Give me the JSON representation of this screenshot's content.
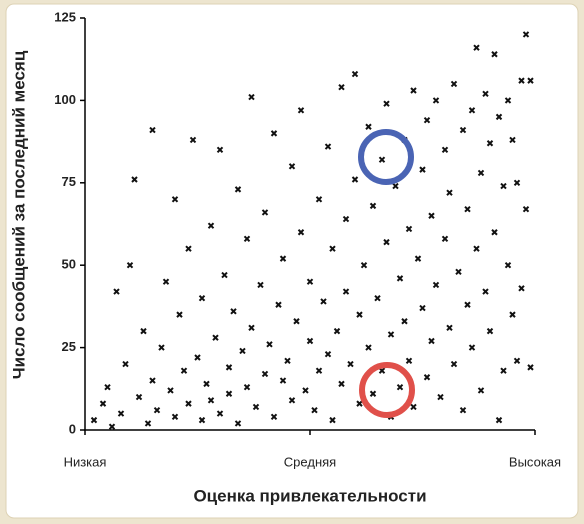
{
  "chart_data": {
    "type": "scatter",
    "xlabel": "Оценка привлекательности",
    "ylabel": "Число сообщений за последний месяц",
    "xlim": [
      0,
      1
    ],
    "ylim": [
      0,
      125
    ],
    "xticks": [
      {
        "value": 0,
        "label": "Низкая"
      },
      {
        "value": 0.5,
        "label": "Средняя"
      },
      {
        "value": 1,
        "label": "Высокая"
      }
    ],
    "yticks": [
      0,
      25,
      50,
      75,
      100,
      125
    ],
    "color": "#111111",
    "x": [
      0.02,
      0.04,
      0.05,
      0.06,
      0.07,
      0.08,
      0.09,
      0.1,
      0.11,
      0.12,
      0.13,
      0.14,
      0.15,
      0.15,
      0.16,
      0.17,
      0.18,
      0.19,
      0.2,
      0.2,
      0.21,
      0.22,
      0.23,
      0.23,
      0.24,
      0.25,
      0.26,
      0.26,
      0.27,
      0.28,
      0.28,
      0.29,
      0.3,
      0.3,
      0.31,
      0.32,
      0.32,
      0.33,
      0.34,
      0.34,
      0.35,
      0.36,
      0.36,
      0.37,
      0.37,
      0.38,
      0.39,
      0.4,
      0.4,
      0.41,
      0.42,
      0.42,
      0.43,
      0.44,
      0.44,
      0.45,
      0.46,
      0.46,
      0.47,
      0.48,
      0.48,
      0.49,
      0.5,
      0.5,
      0.51,
      0.52,
      0.52,
      0.53,
      0.54,
      0.54,
      0.55,
      0.55,
      0.56,
      0.57,
      0.57,
      0.58,
      0.58,
      0.59,
      0.6,
      0.6,
      0.61,
      0.61,
      0.62,
      0.63,
      0.63,
      0.64,
      0.64,
      0.65,
      0.66,
      0.66,
      0.67,
      0.67,
      0.68,
      0.68,
      0.69,
      0.7,
      0.7,
      0.71,
      0.71,
      0.72,
      0.72,
      0.73,
      0.73,
      0.74,
      0.75,
      0.75,
      0.76,
      0.76,
      0.77,
      0.77,
      0.78,
      0.78,
      0.79,
      0.8,
      0.8,
      0.81,
      0.81,
      0.82,
      0.82,
      0.83,
      0.84,
      0.84,
      0.85,
      0.85,
      0.86,
      0.86,
      0.87,
      0.87,
      0.88,
      0.88,
      0.89,
      0.89,
      0.9,
      0.9,
      0.91,
      0.91,
      0.92,
      0.92,
      0.93,
      0.93,
      0.94,
      0.94,
      0.95,
      0.95,
      0.96,
      0.96,
      0.97,
      0.97,
      0.98,
      0.98,
      0.99,
      0.99
    ],
    "values": [
      3,
      8,
      13,
      1,
      42,
      5,
      20,
      50,
      76,
      10,
      30,
      2,
      91,
      15,
      6,
      25,
      45,
      12,
      4,
      70,
      35,
      18,
      55,
      8,
      88,
      22,
      3,
      40,
      14,
      62,
      9,
      28,
      85,
      5,
      47,
      19,
      11,
      36,
      73,
      2,
      24,
      58,
      13,
      101,
      31,
      7,
      44,
      17,
      66,
      26,
      90,
      4,
      38,
      15,
      52,
      21,
      80,
      9,
      33,
      97,
      60,
      12,
      27,
      45,
      6,
      70,
      18,
      39,
      86,
      23,
      55,
      3,
      30,
      104,
      14,
      64,
      42,
      20,
      108,
      76,
      35,
      8,
      50,
      92,
      25,
      68,
      11,
      40,
      82,
      18,
      57,
      99,
      29,
      4,
      74,
      46,
      13,
      88,
      33,
      61,
      21,
      103,
      7,
      52,
      79,
      37,
      94,
      16,
      65,
      27,
      100,
      44,
      10,
      85,
      58,
      31,
      72,
      105,
      20,
      48,
      91,
      6,
      67,
      38,
      97,
      25,
      116,
      55,
      78,
      12,
      102,
      42,
      87,
      30,
      114,
      60,
      95,
      3,
      74,
      18,
      100,
      50,
      88,
      35,
      75,
      21,
      106,
      43,
      120,
      67,
      19,
      106
    ]
  }
}
